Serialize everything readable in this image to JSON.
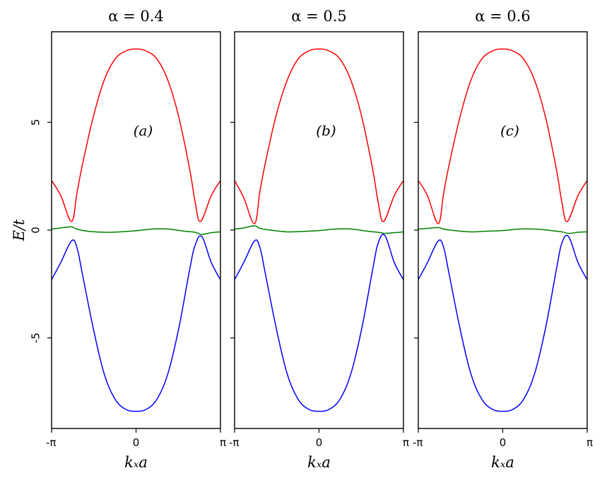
{
  "colors": {
    "upper": "#ff0000",
    "middle": "#008000",
    "lower": "#0000ff"
  },
  "chart_data": [
    {
      "type": "line",
      "title": "α = 0.4",
      "panel_label": "(a)",
      "xlabel": "kₓa",
      "ylabel": "E/t",
      "xlim": [
        -3.14159,
        3.14159
      ],
      "ylim": [
        -9.2,
        9.2
      ],
      "xticks": [
        {
          "v": -3.14159,
          "label": "-π"
        },
        {
          "v": 0,
          "label": "0"
        },
        {
          "v": 3.14159,
          "label": "π"
        }
      ],
      "yticks": [
        {
          "v": 5,
          "label": "5"
        },
        {
          "v": 0,
          "label": "0"
        },
        {
          "v": -5,
          "label": "-5"
        }
      ],
      "series": [
        {
          "color": "#ff0000",
          "x": [
            -3.1416,
            -2.8,
            -2.4,
            -2.2,
            -2.0,
            -1.6,
            -1.2,
            -0.8,
            -0.4,
            0,
            0.4,
            0.8,
            1.2,
            1.6,
            2.0,
            2.2,
            2.4,
            2.8,
            3.1416
          ],
          "y": [
            2.3,
            1.6,
            0.4,
            1.7,
            3.0,
            5.2,
            6.9,
            7.9,
            8.3,
            8.4,
            8.3,
            7.9,
            6.9,
            5.2,
            2.8,
            1.3,
            0.4,
            1.6,
            2.3
          ]
        },
        {
          "color": "#008000",
          "x": [
            -3.1416,
            -2.8,
            -2.4,
            -2.2,
            -1.8,
            -1.2,
            -0.6,
            0,
            0.6,
            1.2,
            1.8,
            2.2,
            2.45,
            2.8,
            3.1416
          ],
          "y": [
            0.05,
            0.1,
            0.15,
            0.05,
            -0.05,
            -0.1,
            -0.08,
            -0.03,
            0.05,
            0.05,
            -0.05,
            -0.1,
            -0.2,
            -0.12,
            -0.08
          ]
        },
        {
          "color": "#0000ff",
          "x": [
            -3.1416,
            -2.8,
            -2.4,
            -2.2,
            -2.0,
            -1.6,
            -1.2,
            -0.8,
            -0.4,
            0,
            0.4,
            0.8,
            1.2,
            1.6,
            2.0,
            2.2,
            2.45,
            2.8,
            3.1416
          ],
          "y": [
            -2.3,
            -1.5,
            -0.5,
            -0.8,
            -2.0,
            -4.5,
            -6.6,
            -7.8,
            -8.3,
            -8.4,
            -8.3,
            -7.8,
            -6.6,
            -4.5,
            -1.8,
            -0.7,
            -0.3,
            -1.5,
            -2.3
          ]
        }
      ]
    },
    {
      "type": "line",
      "title": "α = 0.5",
      "panel_label": "(b)",
      "xlabel": "kₓa",
      "ylabel": "",
      "xlim": [
        -3.14159,
        3.14159
      ],
      "ylim": [
        -9.2,
        9.2
      ],
      "xticks": [
        {
          "v": -3.14159,
          "label": "-π"
        },
        {
          "v": 0,
          "label": "0"
        },
        {
          "v": 3.14159,
          "label": "π"
        }
      ],
      "yticks": [
        {
          "v": 5,
          "label": ""
        },
        {
          "v": 0,
          "label": ""
        },
        {
          "v": -5,
          "label": ""
        }
      ],
      "series": [
        {
          "color": "#ff0000",
          "x": [
            -3.1416,
            -2.8,
            -2.4,
            -2.2,
            -2.0,
            -1.6,
            -1.2,
            -0.8,
            -0.4,
            0,
            0.4,
            0.8,
            1.2,
            1.6,
            2.0,
            2.2,
            2.4,
            2.8,
            3.1416
          ],
          "y": [
            2.3,
            1.5,
            0.3,
            1.8,
            3.1,
            5.3,
            6.9,
            7.9,
            8.3,
            8.4,
            8.3,
            7.9,
            6.9,
            5.2,
            2.8,
            1.3,
            0.4,
            1.6,
            2.3
          ]
        },
        {
          "color": "#008000",
          "x": [
            -3.1416,
            -2.8,
            -2.4,
            -2.2,
            -1.8,
            -1.2,
            -0.6,
            0,
            0.6,
            1.2,
            1.8,
            2.2,
            2.45,
            2.8,
            3.1416
          ],
          "y": [
            0.05,
            0.1,
            0.2,
            0.08,
            0.0,
            -0.08,
            -0.06,
            -0.02,
            0.05,
            0.05,
            -0.05,
            -0.1,
            -0.15,
            -0.12,
            -0.08
          ]
        },
        {
          "color": "#0000ff",
          "x": [
            -3.1416,
            -2.8,
            -2.4,
            -2.2,
            -2.0,
            -1.6,
            -1.2,
            -0.8,
            -0.4,
            0,
            0.4,
            0.8,
            1.2,
            1.6,
            2.0,
            2.2,
            2.45,
            2.8,
            3.1416
          ],
          "y": [
            -2.3,
            -1.5,
            -0.5,
            -0.8,
            -2.0,
            -4.5,
            -6.6,
            -7.8,
            -8.3,
            -8.4,
            -8.3,
            -7.8,
            -6.6,
            -4.5,
            -1.8,
            -0.6,
            -0.25,
            -1.5,
            -2.3
          ]
        }
      ]
    },
    {
      "type": "line",
      "title": "α = 0.6",
      "panel_label": "(c)",
      "xlabel": "kₓa",
      "ylabel": "",
      "xlim": [
        -3.14159,
        3.14159
      ],
      "ylim": [
        -9.2,
        9.2
      ],
      "xticks": [
        {
          "v": -3.14159,
          "label": "-π"
        },
        {
          "v": 0,
          "label": "0"
        },
        {
          "v": 3.14159,
          "label": "π"
        }
      ],
      "yticks": [
        {
          "v": 5,
          "label": ""
        },
        {
          "v": 0,
          "label": ""
        },
        {
          "v": -5,
          "label": ""
        }
      ],
      "series": [
        {
          "color": "#ff0000",
          "x": [
            -3.1416,
            -2.8,
            -2.4,
            -2.2,
            -2.0,
            -1.6,
            -1.2,
            -0.8,
            -0.4,
            0,
            0.4,
            0.8,
            1.2,
            1.6,
            2.0,
            2.2,
            2.4,
            2.8,
            3.1416
          ],
          "y": [
            2.3,
            1.6,
            0.3,
            1.7,
            3.0,
            5.2,
            6.9,
            7.9,
            8.3,
            8.4,
            8.3,
            7.9,
            6.9,
            5.2,
            2.8,
            1.3,
            0.4,
            1.6,
            2.3
          ]
        },
        {
          "color": "#008000",
          "x": [
            -3.1416,
            -2.8,
            -2.4,
            -2.2,
            -1.8,
            -1.2,
            -0.6,
            0,
            0.6,
            1.2,
            1.8,
            2.2,
            2.45,
            2.8,
            3.1416
          ],
          "y": [
            0.05,
            0.08,
            0.12,
            0.05,
            -0.02,
            -0.08,
            -0.05,
            -0.02,
            0.05,
            0.05,
            -0.02,
            -0.08,
            -0.15,
            -0.1,
            -0.08
          ]
        },
        {
          "color": "#0000ff",
          "x": [
            -3.1416,
            -2.8,
            -2.4,
            -2.2,
            -2.0,
            -1.6,
            -1.2,
            -0.8,
            -0.4,
            0,
            0.4,
            0.8,
            1.2,
            1.6,
            2.0,
            2.2,
            2.45,
            2.8,
            3.1416
          ],
          "y": [
            -2.3,
            -1.5,
            -0.5,
            -0.8,
            -2.0,
            -4.5,
            -6.6,
            -7.8,
            -8.3,
            -8.4,
            -8.3,
            -7.8,
            -6.6,
            -4.5,
            -1.8,
            -0.6,
            -0.3,
            -1.5,
            -2.3
          ]
        }
      ]
    }
  ]
}
